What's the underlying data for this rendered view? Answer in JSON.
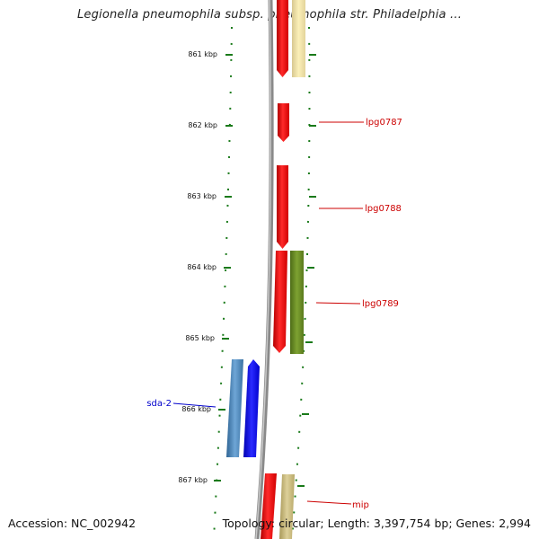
{
  "title": "Legionella pneumophila subsp. pneumophila str. Philadelphia ...",
  "ticks": [
    {
      "label": "861 kbp",
      "position_kbp": 861
    },
    {
      "label": "862 kbp",
      "position_kbp": 862
    },
    {
      "label": "863 kbp",
      "position_kbp": 863
    },
    {
      "label": "864 kbp",
      "position_kbp": 864
    },
    {
      "label": "865 kbp",
      "position_kbp": 865
    },
    {
      "label": "866 kbp",
      "position_kbp": 866
    },
    {
      "label": "867 kbp",
      "position_kbp": 867
    }
  ],
  "gene_labels": [
    {
      "text": "lpg0787",
      "color": "#cc0000"
    },
    {
      "text": "lpg0788",
      "color": "#cc0000"
    },
    {
      "text": "lpg0789",
      "color": "#cc0000"
    },
    {
      "text": "sda-2",
      "color": "#0000cc"
    },
    {
      "text": "mip",
      "color": "#cc0000"
    }
  ],
  "feature_colors": {
    "cds_forward": "#ff0000",
    "cds_pale": "#f0e2a0",
    "cds_olive": "#6b8e23",
    "cds_tan": "#c8b878",
    "cds_steel": "#4682b4",
    "cds_blue": "#0000ff",
    "backbone": "#888888",
    "tick_marks": "#1a7a1a"
  },
  "accession": "Accession: NC_002942",
  "topology": "Topology: circular; Length: 3,397,754 bp; Genes: 2,994"
}
